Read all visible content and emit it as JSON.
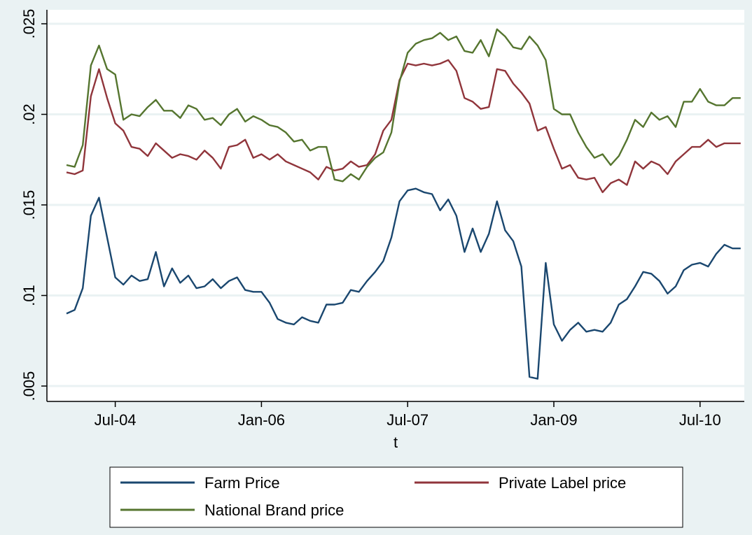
{
  "chart_data": {
    "type": "line",
    "title": "",
    "xlabel": "t",
    "ylabel": "",
    "xlim": [
      "2004-01",
      "2010-12"
    ],
    "ylim": [
      0.005,
      0.025
    ],
    "y_ticks": [
      0.005,
      0.01,
      0.015,
      0.02,
      0.025
    ],
    "y_tick_labels": [
      ".005",
      ".01",
      ".015",
      ".02",
      ".025"
    ],
    "x_ticks": [
      "2004-07",
      "2006-01",
      "2007-07",
      "2009-01",
      "2010-07"
    ],
    "x_tick_labels": [
      "Jul-04",
      "Jan-06",
      "Jul-07",
      "Jan-09",
      "Jul-10"
    ],
    "grid": true,
    "legend_position": "bottom",
    "colors": {
      "Farm Price": "#1a476f",
      "Private Label price": "#90353b",
      "National Brand price": "#55752f"
    },
    "x": [
      "2004-01",
      "2004-02",
      "2004-03",
      "2004-04",
      "2004-05",
      "2004-06",
      "2004-07",
      "2004-08",
      "2004-09",
      "2004-10",
      "2004-11",
      "2004-12",
      "2005-01",
      "2005-02",
      "2005-03",
      "2005-04",
      "2005-05",
      "2005-06",
      "2005-07",
      "2005-08",
      "2005-09",
      "2005-10",
      "2005-11",
      "2005-12",
      "2006-01",
      "2006-02",
      "2006-03",
      "2006-04",
      "2006-05",
      "2006-06",
      "2006-07",
      "2006-08",
      "2006-09",
      "2006-10",
      "2006-11",
      "2006-12",
      "2007-01",
      "2007-02",
      "2007-03",
      "2007-04",
      "2007-05",
      "2007-06",
      "2007-07",
      "2007-08",
      "2007-09",
      "2007-10",
      "2007-11",
      "2007-12",
      "2008-01",
      "2008-02",
      "2008-03",
      "2008-04",
      "2008-05",
      "2008-06",
      "2008-07",
      "2008-08",
      "2008-09",
      "2008-10",
      "2008-11",
      "2008-12",
      "2009-01",
      "2009-02",
      "2009-03",
      "2009-04",
      "2009-05",
      "2009-06",
      "2009-07",
      "2009-08",
      "2009-09",
      "2009-10",
      "2009-11",
      "2009-12",
      "2010-01",
      "2010-02",
      "2010-03",
      "2010-04",
      "2010-05",
      "2010-06",
      "2010-07",
      "2010-08",
      "2010-09",
      "2010-10",
      "2010-11",
      "2010-12"
    ],
    "series": [
      {
        "name": "Farm Price",
        "values": [
          0.009,
          0.0092,
          0.0104,
          0.0144,
          0.0154,
          0.0132,
          0.011,
          0.0106,
          0.0111,
          0.0108,
          0.0109,
          0.0124,
          0.0105,
          0.0115,
          0.0107,
          0.0111,
          0.0104,
          0.0105,
          0.0109,
          0.0104,
          0.0108,
          0.011,
          0.0103,
          0.0102,
          0.0102,
          0.0096,
          0.0087,
          0.0085,
          0.0084,
          0.0088,
          0.0086,
          0.0085,
          0.0095,
          0.0095,
          0.0096,
          0.0103,
          0.0102,
          0.0108,
          0.0113,
          0.0119,
          0.0132,
          0.0152,
          0.0158,
          0.0159,
          0.0157,
          0.0156,
          0.0147,
          0.0153,
          0.0144,
          0.0124,
          0.0137,
          0.0124,
          0.0134,
          0.0152,
          0.0136,
          0.013,
          0.0116,
          0.0055,
          0.0054,
          0.0118,
          0.0084,
          0.0075,
          0.0081,
          0.0085,
          0.008,
          0.0081,
          0.008,
          0.0085,
          0.0095,
          0.0098,
          0.0105,
          0.0113,
          0.0112,
          0.0108,
          0.0101,
          0.0105,
          0.0114,
          0.0117,
          0.0118,
          0.0116,
          0.0123,
          0.0128,
          0.0126,
          0.0126
        ]
      },
      {
        "name": "Private Label price",
        "values": [
          0.0168,
          0.0167,
          0.0169,
          0.021,
          0.0225,
          0.0209,
          0.0195,
          0.0191,
          0.0182,
          0.0181,
          0.0177,
          0.0184,
          0.018,
          0.0176,
          0.0178,
          0.0177,
          0.0175,
          0.018,
          0.0176,
          0.017,
          0.0182,
          0.0183,
          0.0186,
          0.0176,
          0.0178,
          0.0175,
          0.0178,
          0.0174,
          0.0172,
          0.017,
          0.0168,
          0.0164,
          0.0171,
          0.0169,
          0.017,
          0.0174,
          0.0171,
          0.0172,
          0.0178,
          0.0191,
          0.0197,
          0.0219,
          0.0228,
          0.0227,
          0.0228,
          0.0227,
          0.0228,
          0.023,
          0.0224,
          0.0209,
          0.0207,
          0.0203,
          0.0204,
          0.0225,
          0.0224,
          0.0217,
          0.0212,
          0.0206,
          0.0191,
          0.0193,
          0.0181,
          0.017,
          0.0172,
          0.0165,
          0.0164,
          0.0165,
          0.0157,
          0.0162,
          0.0164,
          0.0161,
          0.0174,
          0.017,
          0.0174,
          0.0172,
          0.0167,
          0.0174,
          0.0178,
          0.0182,
          0.0182,
          0.0186,
          0.0182,
          0.0184,
          0.0184,
          0.0184
        ]
      },
      {
        "name": "National Brand price",
        "values": [
          0.0172,
          0.0171,
          0.0183,
          0.0227,
          0.0238,
          0.0225,
          0.0222,
          0.0197,
          0.02,
          0.0199,
          0.0204,
          0.0208,
          0.0202,
          0.0202,
          0.0198,
          0.0205,
          0.0203,
          0.0197,
          0.0198,
          0.0194,
          0.02,
          0.0203,
          0.0196,
          0.0199,
          0.0197,
          0.0194,
          0.0193,
          0.019,
          0.0185,
          0.0186,
          0.018,
          0.0182,
          0.0182,
          0.0164,
          0.0163,
          0.0167,
          0.0164,
          0.0171,
          0.0176,
          0.0179,
          0.019,
          0.0218,
          0.0234,
          0.0239,
          0.0241,
          0.0242,
          0.0245,
          0.0241,
          0.0243,
          0.0235,
          0.0234,
          0.0241,
          0.0232,
          0.0247,
          0.0243,
          0.0237,
          0.0236,
          0.0243,
          0.0238,
          0.023,
          0.0203,
          0.02,
          0.02,
          0.019,
          0.0182,
          0.0176,
          0.0178,
          0.0172,
          0.0177,
          0.0186,
          0.0197,
          0.0193,
          0.0201,
          0.0197,
          0.0199,
          0.0193,
          0.0207,
          0.0207,
          0.0214,
          0.0207,
          0.0205,
          0.0205,
          0.0209,
          0.0209
        ]
      }
    ],
    "legend": [
      "Farm Price",
      "Private Label price",
      "National Brand price"
    ]
  }
}
